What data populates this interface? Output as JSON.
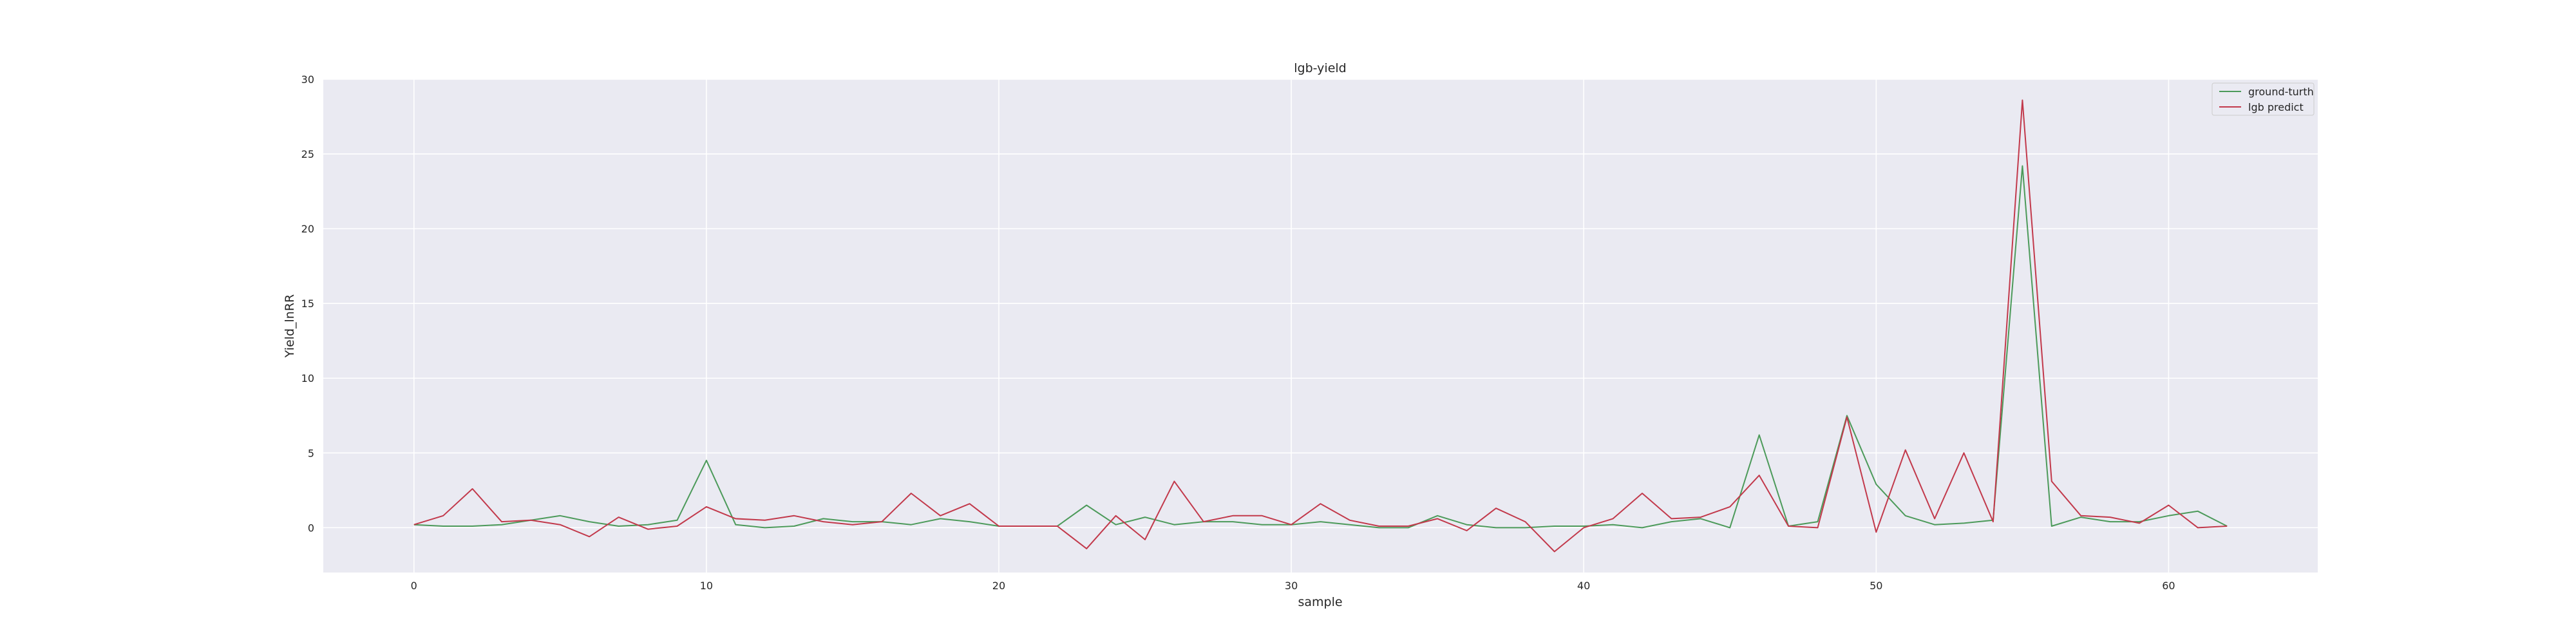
{
  "chart_data": {
    "type": "line",
    "title": "lgb-yield",
    "xlabel": "sample",
    "ylabel": "Yield_lnRR",
    "xlim": [
      -3.1,
      65.1
    ],
    "ylim": [
      -3,
      30
    ],
    "xticks": [
      0,
      10,
      20,
      30,
      40,
      50,
      60
    ],
    "yticks": [
      0,
      5,
      10,
      15,
      20,
      25,
      30
    ],
    "grid": true,
    "legend_position": "top-right",
    "x": [
      0,
      1,
      2,
      3,
      4,
      5,
      6,
      7,
      8,
      9,
      10,
      11,
      12,
      13,
      14,
      15,
      16,
      17,
      18,
      19,
      20,
      21,
      22,
      23,
      24,
      25,
      26,
      27,
      28,
      29,
      30,
      31,
      32,
      33,
      34,
      35,
      36,
      37,
      38,
      39,
      40,
      41,
      42,
      43,
      44,
      45,
      46,
      47,
      48,
      49,
      50,
      51,
      52,
      53,
      54,
      55,
      56,
      57,
      58,
      59,
      60,
      61,
      62
    ],
    "series": [
      {
        "name": "ground-turth",
        "color": "#4c9a5a",
        "values": [
          0.2,
          0.1,
          0.1,
          0.2,
          0.5,
          0.8,
          0.4,
          0.1,
          0.2,
          0.5,
          4.5,
          0.2,
          0.0,
          0.1,
          0.6,
          0.4,
          0.4,
          0.2,
          0.6,
          0.4,
          0.1,
          0.1,
          0.1,
          1.5,
          0.2,
          0.7,
          0.2,
          0.4,
          0.4,
          0.2,
          0.2,
          0.4,
          0.2,
          0.0,
          0.0,
          0.8,
          0.2,
          0.0,
          0.0,
          0.1,
          0.1,
          0.2,
          0.0,
          0.4,
          0.6,
          0.0,
          6.2,
          0.1,
          0.4,
          7.5,
          2.9,
          0.8,
          0.2,
          0.3,
          0.5,
          24.2,
          0.1,
          0.7,
          0.4,
          0.4,
          0.8,
          1.1,
          0.1
        ]
      },
      {
        "name": "lgb predict",
        "color": "#c2394b",
        "values": [
          0.2,
          0.8,
          2.6,
          0.4,
          0.5,
          0.2,
          -0.6,
          0.7,
          -0.1,
          0.1,
          1.4,
          0.6,
          0.5,
          0.8,
          0.4,
          0.2,
          0.4,
          2.3,
          0.8,
          1.6,
          0.1,
          0.1,
          0.1,
          -1.4,
          0.8,
          -0.8,
          3.1,
          0.4,
          0.8,
          0.8,
          0.2,
          1.6,
          0.5,
          0.1,
          0.1,
          0.6,
          -0.2,
          1.3,
          0.4,
          -1.6,
          0.0,
          0.6,
          2.3,
          0.6,
          0.7,
          1.4,
          3.5,
          0.1,
          0.0,
          7.4,
          -0.3,
          5.2,
          0.6,
          5.0,
          0.4,
          28.6,
          3.1,
          0.8,
          0.7,
          0.3,
          1.5,
          0.0,
          0.1
        ]
      }
    ]
  }
}
